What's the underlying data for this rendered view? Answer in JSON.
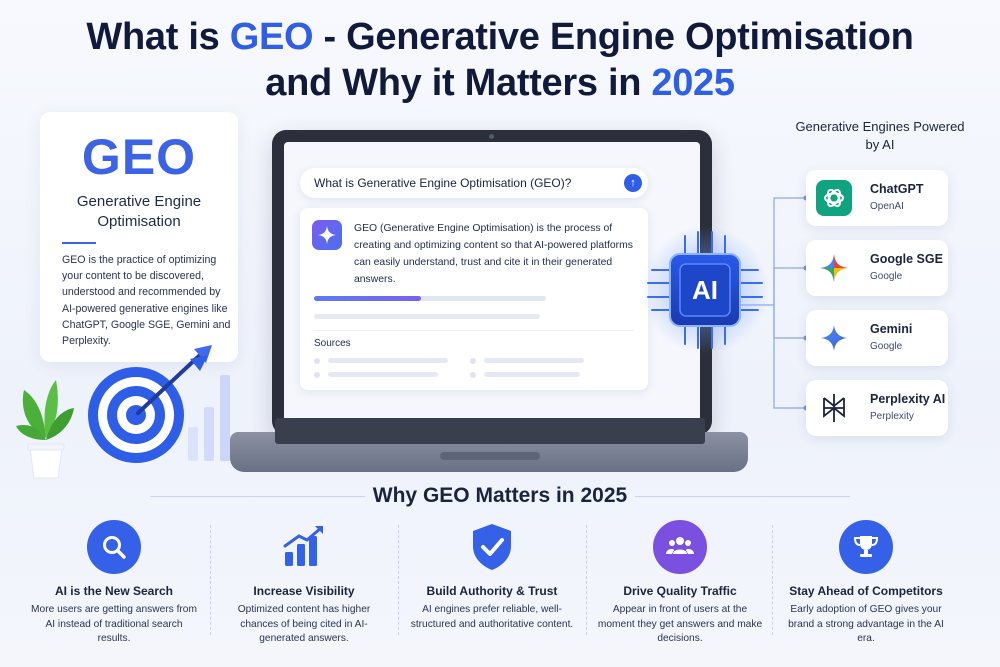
{
  "title": {
    "prefix": "What is ",
    "accent": "GEO",
    "rest": " - Generative Engine Optimisation",
    "line2": "and Why it Matters in ",
    "year": "2025"
  },
  "geo_card": {
    "heading": "GEO",
    "subtitle": "Generative Engine Optimisation",
    "description": "GEO is the practice of optimizing your content to be discovered, understood and recommended by AI-powered generative engines like ChatGPT, Google SGE, Gemini and Perplexity."
  },
  "laptop": {
    "query": "What is Generative Engine Optimisation (GEO)?",
    "answer": "GEO (Generative Engine Optimisation) is the process of creating and optimizing content so that AI-powered platforms can easily understand, trust and cite it in their generated answers.",
    "progress": 0.46,
    "sources_label": "Sources"
  },
  "chip": {
    "label": "AI"
  },
  "engines": {
    "title": "Generative Engines Powered by AI",
    "items": [
      {
        "name": "ChatGPT",
        "by": "OpenAI",
        "icon": "chatgpt-icon",
        "color": "#10a37f"
      },
      {
        "name": "Google SGE",
        "by": "Google",
        "icon": "google-sge-icon",
        "color": "#4285f4"
      },
      {
        "name": "Gemini",
        "by": "Google",
        "icon": "gemini-icon",
        "color": "#3b6cf0"
      },
      {
        "name": "Perplexity AI",
        "by": "Perplexity",
        "icon": "perplexity-icon",
        "color": "#1a2340"
      }
    ]
  },
  "why": {
    "title": "Why GEO Matters in 2025",
    "features": [
      {
        "title": "AI is the New Search",
        "desc": "More users are getting answers from AI instead of traditional search results.",
        "icon": "search-icon",
        "color": "#3560e8"
      },
      {
        "title": "Increase Visibility",
        "desc": "Optimized content has higher chances of being cited in AI-generated answers.",
        "icon": "bar-chart-icon",
        "color": "#3560e8"
      },
      {
        "title": "Build Authority & Trust",
        "desc": "AI engines prefer reliable, well-structured and authoritative content.",
        "icon": "shield-check-icon",
        "color": "#3560e8"
      },
      {
        "title": "Drive Quality Traffic",
        "desc": "Appear in front of users at the moment they get answers and make decisions.",
        "icon": "users-icon",
        "color": "#7b4fe0"
      },
      {
        "title": "Stay Ahead of Competitors",
        "desc": "Early adoption of GEO gives your brand a strong advantage in the AI era.",
        "icon": "trophy-icon",
        "color": "#3560e8"
      }
    ]
  }
}
